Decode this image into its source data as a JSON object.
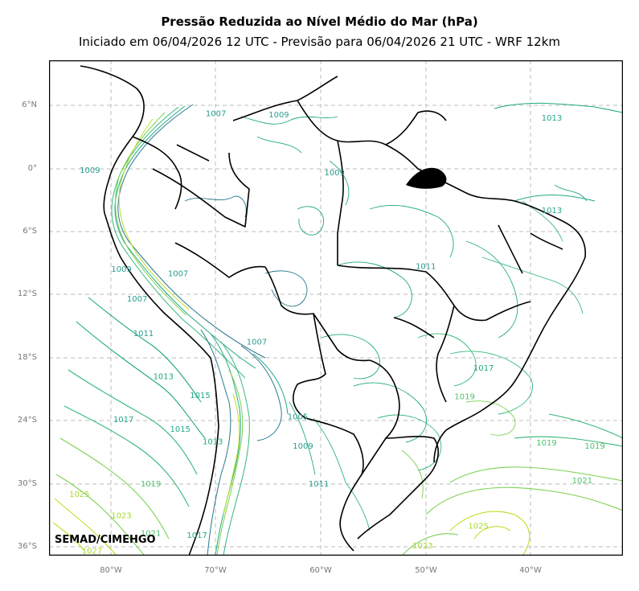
{
  "header": {
    "title": "Pressão Reduzida ao Nível Médio do Mar (hPa)",
    "subtitle": "Iniciado em 06/04/2026 12 UTC - Previsão para 06/04/2026 21 UTC - WRF 12km"
  },
  "map": {
    "lat_ticks": [
      "6°N",
      "0°",
      "6°S",
      "12°S",
      "18°S",
      "24°S",
      "30°S",
      "36°S"
    ],
    "lon_ticks": [
      "80°W",
      "70°W",
      "60°W",
      "50°W",
      "40°W"
    ],
    "grid": true,
    "colors": {
      "low": "#2a788e",
      "mid": "#22a884",
      "high_mid": "#7ad151",
      "high": "#bddf26",
      "borders": "#000000",
      "grid": "#bbbbbb"
    },
    "contour_labels": [
      {
        "text": "1007",
        "lon": -70,
        "lat": 5.0
      },
      {
        "text": "1009",
        "lon": -64,
        "lat": 4.9
      },
      {
        "text": "1013",
        "lon": -38,
        "lat": 4.6
      },
      {
        "text": "1009",
        "lon": -82,
        "lat": -0.4
      },
      {
        "text": "1009",
        "lon": -58.7,
        "lat": -0.6
      },
      {
        "text": "1013",
        "lon": -38,
        "lat": -4.2
      },
      {
        "text": "1011",
        "lon": -50,
        "lat": -9.5
      },
      {
        "text": "1009",
        "lon": -79,
        "lat": -9.8
      },
      {
        "text": "1007",
        "lon": -73.6,
        "lat": -10.2
      },
      {
        "text": "1007",
        "lon": -77.5,
        "lat": -12.6
      },
      {
        "text": "1011",
        "lon": -76.9,
        "lat": -15.9
      },
      {
        "text": "1007",
        "lon": -66.1,
        "lat": -16.7
      },
      {
        "text": "1013",
        "lon": -75,
        "lat": -20
      },
      {
        "text": "1017",
        "lon": -44.5,
        "lat": -19.2
      },
      {
        "text": "1015",
        "lon": -71.5,
        "lat": -21.8
      },
      {
        "text": "1019",
        "lon": -46.3,
        "lat": -21.9
      },
      {
        "text": "1017",
        "lon": -78.8,
        "lat": -24.1
      },
      {
        "text": "1005",
        "lon": -62.2,
        "lat": -23.8
      },
      {
        "text": "1015",
        "lon": -73.4,
        "lat": -25
      },
      {
        "text": "1013",
        "lon": -70.3,
        "lat": -26.2
      },
      {
        "text": "1009",
        "lon": -61.7,
        "lat": -26.6
      },
      {
        "text": "1019",
        "lon": -38.5,
        "lat": -26.3
      },
      {
        "text": "1019",
        "lon": -33.9,
        "lat": -26.6
      },
      {
        "text": "1011",
        "lon": -60.2,
        "lat": -30.2
      },
      {
        "text": "1019",
        "lon": -76.2,
        "lat": -30.2
      },
      {
        "text": "1021",
        "lon": -35.1,
        "lat": -29.9
      },
      {
        "text": "1025",
        "lon": -83,
        "lat": -31.2
      },
      {
        "text": "1023",
        "lon": -79,
        "lat": -33.2
      },
      {
        "text": "1025",
        "lon": -45,
        "lat": -34.2
      },
      {
        "text": "1021",
        "lon": -76.2,
        "lat": -34.9
      },
      {
        "text": "1017",
        "lon": -71.8,
        "lat": -35.1
      },
      {
        "text": "1023",
        "lon": -50.3,
        "lat": -36.1
      },
      {
        "text": "1027",
        "lon": -81.8,
        "lat": -36.6
      }
    ]
  },
  "watermark": "SEMAD/CIMEHGO"
}
